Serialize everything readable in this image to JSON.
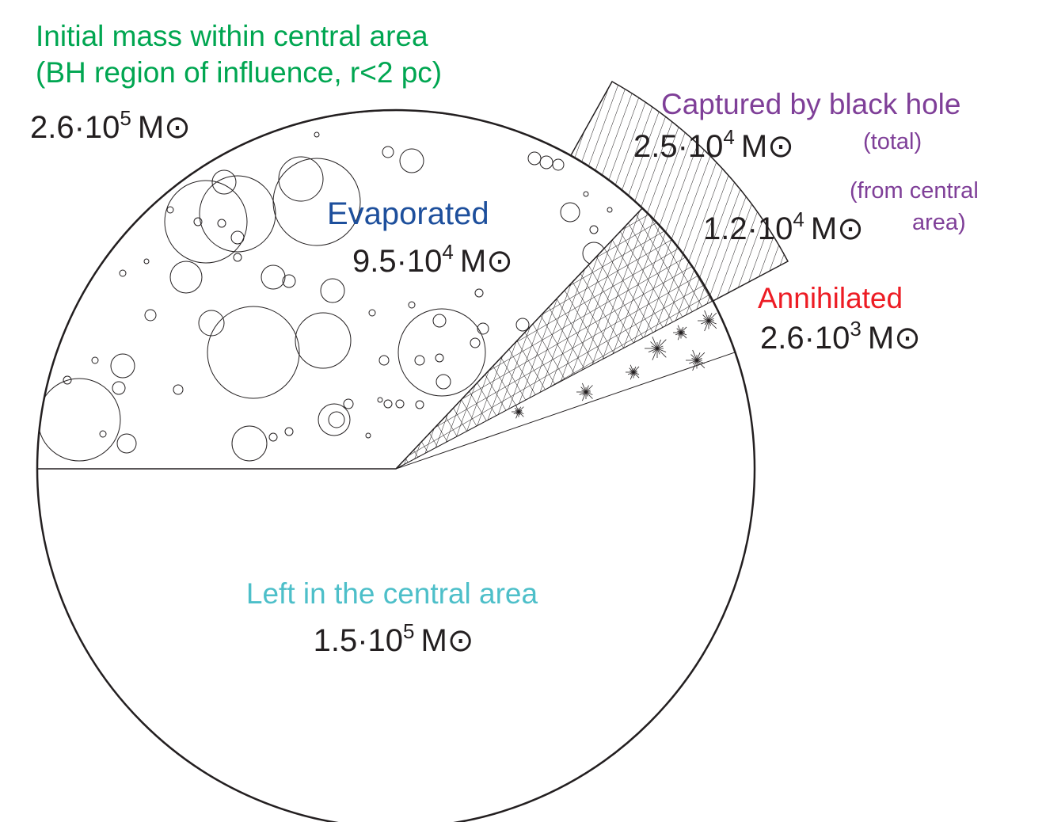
{
  "title": {
    "line1": "Initial mass within central area",
    "line2": "(BH region of influence, r<2 pc)"
  },
  "initial": {
    "base": "2.6·10",
    "exp": "5",
    "unit": "M⊙"
  },
  "captured": {
    "label": "Captured by black hole",
    "total": {
      "base": "2.5·10",
      "exp": "4",
      "unit": "M⊙",
      "note": "(total)"
    },
    "central": {
      "base": "1.2·10",
      "exp": "4",
      "unit": "M⊙",
      "note_line1": "(from central",
      "note_line2": "area)"
    }
  },
  "annihilated": {
    "label": "Annihilated",
    "base": "2.6·10",
    "exp": "3",
    "unit": "M⊙"
  },
  "evaporated": {
    "label": "Evaporated",
    "base": "9.5·10",
    "exp": "4",
    "unit": "M⊙"
  },
  "left": {
    "label": "Left in the central area",
    "base": "1.5·10",
    "exp": "5",
    "unit": "M⊙"
  }
}
